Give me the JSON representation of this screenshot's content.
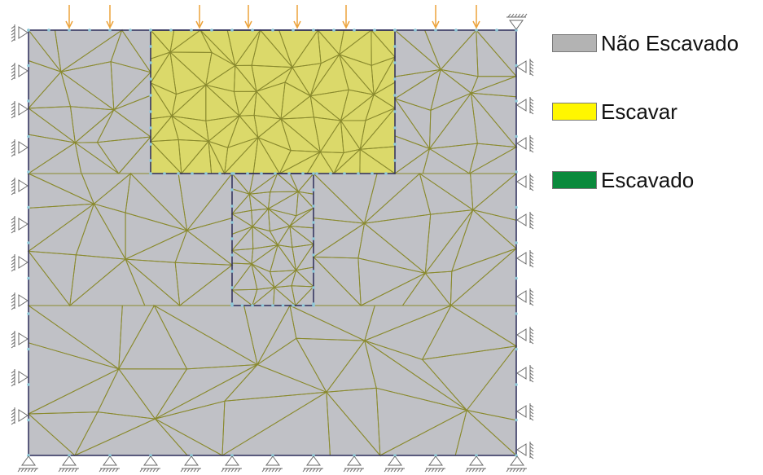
{
  "colors": {
    "soil": "#c0c1c6",
    "excavate": "#dbd96a",
    "excavated": "#0a8a3c",
    "mesh_line": "#8a8a2e",
    "outline": "#2c2d5a",
    "node": "#8fc8d8",
    "load_arrow": "#eca23a",
    "support": "#6a6a6a"
  },
  "legend": [
    {
      "label": "Não Escavado",
      "color": "#b3b3b3"
    },
    {
      "label": "Escavar",
      "color": "#fff700"
    },
    {
      "label": "Escavado",
      "color": "#0a8a3c"
    }
  ]
}
